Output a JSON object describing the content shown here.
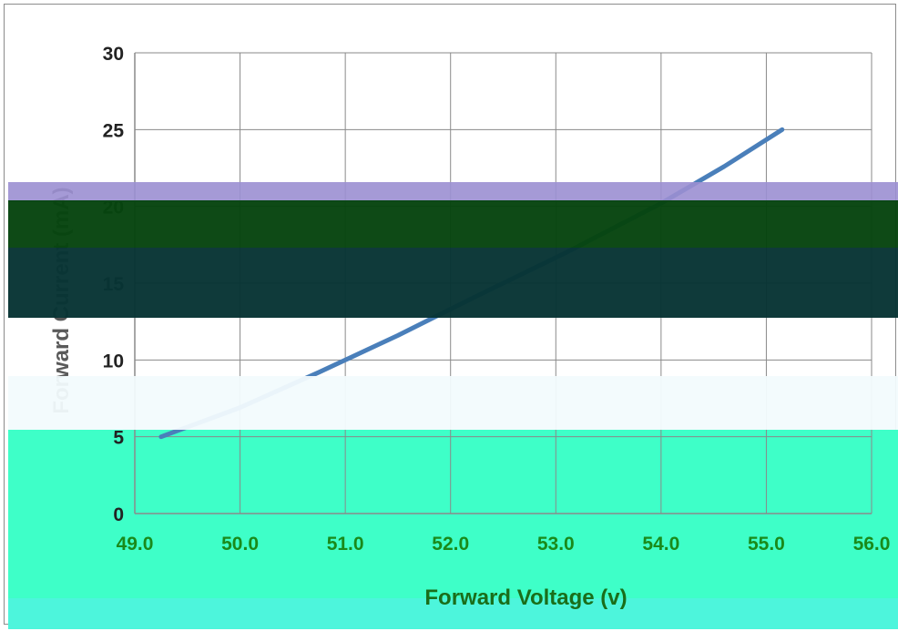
{
  "chart_data": {
    "type": "line",
    "title": "",
    "xlabel": "Forward Voltage (v)",
    "ylabel": "Forward Current (mA)",
    "xlim": [
      49.0,
      56.0
    ],
    "ylim": [
      0,
      30
    ],
    "x_ticks": [
      "49.0",
      "50.0",
      "51.0",
      "52.0",
      "53.0",
      "54.0",
      "55.0",
      "56.0"
    ],
    "y_ticks": [
      "0",
      "5",
      "10",
      "15",
      "20",
      "25",
      "30"
    ],
    "grid": true,
    "series": [
      {
        "name": "",
        "x": [
          49.25,
          50.0,
          50.75,
          51.5,
          52.2,
          53.1,
          54.0,
          54.6,
          55.15
        ],
        "y": [
          5.0,
          6.9,
          9.2,
          11.6,
          14.0,
          17.0,
          20.2,
          22.6,
          25.0
        ]
      }
    ],
    "colors": {
      "line": "#4a7fba",
      "x_tick_labels": "#1a8a1a",
      "y_tick_labels": "#222222",
      "xlabel": "#1a6e1a",
      "ylabel": "#5a5a5a",
      "grid": "#8a8a8a",
      "band_purple": "#9b8fd1",
      "band_dark_green": "#06440e",
      "band_dark_teal": "#073434",
      "band_light": "#f2fbfd",
      "band_mint": "#3effc8",
      "band_mint_bottom": "#4df5dc"
    }
  }
}
